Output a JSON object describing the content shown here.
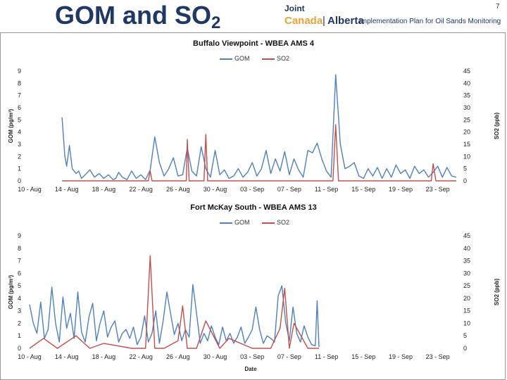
{
  "slide": {
    "title_main": "GOM and SO",
    "title_sub": "2",
    "page_number": "7"
  },
  "logo": {
    "line1": "Joint",
    "canada": "Canada",
    "sep": "|",
    "alberta": "Alberta",
    "plan": "Implementation Plan for Oil Sands Monitoring"
  },
  "colors": {
    "gom": "#4f81bd",
    "so2": "#c0504d"
  },
  "chart_data": [
    {
      "type": "line",
      "title": "Buffalo Viewpoint - WBEA AMS 4",
      "ylabel": "GOM (pg/m³)",
      "y2label": "SO2 (ppb)",
      "xlabel": "",
      "ylim": [
        0,
        9
      ],
      "y2lim": [
        0,
        45
      ],
      "legend": "top-center",
      "x_ticks": [
        "10 - Aug",
        "14 - Aug",
        "18 - Aug",
        "22 - Aug",
        "26 - Aug",
        "30 - Aug",
        "03 - Sep",
        "07 - Sep",
        "11 - Sep",
        "15 - Sep",
        "19 - Sep",
        "23 - Sep"
      ],
      "y_ticks": [
        0,
        1,
        2,
        3,
        4,
        5,
        6,
        7,
        8,
        9
      ],
      "y2_ticks": [
        0,
        5,
        10,
        15,
        20,
        25,
        30,
        35,
        40,
        45
      ],
      "x_range": [
        0,
        46
      ],
      "series": [
        {
          "name": "GOM",
          "axis": "left",
          "color": "#4f81bd",
          "x": [
            3.5,
            3.8,
            4,
            4.3,
            4.6,
            5,
            5.3,
            5.6,
            6,
            6.5,
            7,
            7.5,
            8,
            8.5,
            9,
            9.3,
            9.6,
            10,
            10.5,
            11,
            11.5,
            12,
            12.5,
            13,
            13.5,
            14,
            14.5,
            15,
            15.5,
            16,
            16.5,
            17,
            17.5,
            18,
            18.5,
            19,
            19.5,
            20,
            20.5,
            21,
            21.5,
            22,
            22.5,
            23,
            23.5,
            24,
            24.5,
            25,
            25.5,
            26,
            26.5,
            27,
            27.5,
            28,
            28.5,
            29,
            29.5,
            30,
            30.5,
            31,
            31.5,
            32,
            32.5,
            33,
            33.5,
            34,
            34.5,
            35,
            35.5,
            36,
            36.5,
            37,
            37.5,
            38,
            38.5,
            39,
            39.5,
            40,
            40.5,
            41,
            41.5,
            42,
            42.5,
            43,
            43.5,
            44,
            44.5,
            45,
            45.5,
            46
          ],
          "y": [
            5.2,
            2.0,
            1.2,
            2.9,
            1.0,
            0.6,
            0.8,
            0.2,
            0.5,
            0.9,
            0.3,
            0.6,
            0.2,
            0.5,
            0.1,
            0.2,
            0.7,
            0.3,
            0.1,
            0.8,
            0.2,
            0.5,
            0.1,
            0.9,
            3.6,
            1.5,
            0.4,
            1.0,
            1.9,
            0.4,
            0.5,
            2.7,
            0.8,
            0.4,
            2.8,
            1.0,
            0.3,
            2.5,
            0.5,
            0.9,
            0.2,
            0.4,
            1.0,
            0.3,
            0.7,
            1.5,
            0.4,
            1.0,
            2.5,
            0.6,
            1.8,
            0.8,
            2.4,
            0.5,
            1.8,
            0.9,
            0.3,
            2.5,
            2.3,
            3.1,
            1.8,
            0.8,
            0.3,
            8.7,
            3.0,
            1.0,
            1.2,
            1.5,
            0.4,
            0.2,
            1.0,
            0.4,
            1.1,
            0.2,
            1.0,
            0.3,
            1.3,
            0.6,
            0.9,
            0.2,
            1.2,
            0.6,
            0.9,
            0.3,
            0.7,
            1.2,
            0.3,
            1.1,
            0.4,
            0.3
          ]
        },
        {
          "name": "SO2",
          "axis": "right",
          "color": "#c0504d",
          "x": [
            3.5,
            10,
            12.8,
            13,
            13.2,
            16,
            16.9,
            17,
            17.2,
            18.8,
            19,
            19.2,
            22,
            25,
            30,
            32.7,
            33,
            33.3,
            38,
            43.3,
            43.5,
            43.8,
            46
          ],
          "y": [
            0,
            0,
            0,
            4,
            0,
            0,
            0,
            17,
            0,
            0,
            19,
            0,
            0,
            0,
            0,
            0,
            23,
            0,
            0,
            0,
            7,
            0,
            0
          ]
        }
      ]
    },
    {
      "type": "line",
      "title": "Fort McKay South - WBEA AMS 13",
      "ylabel": "GOM (pg/m³)",
      "y2label": "SO2 (ppb)",
      "xlabel": "Date",
      "ylim": [
        0,
        9
      ],
      "y2lim": [
        0,
        45
      ],
      "legend": "top-center",
      "x_ticks": [
        "10 - Aug",
        "14 - Aug",
        "18 - Aug",
        "22 - Aug",
        "26 - Aug",
        "30 - Aug",
        "03 - Sep",
        "07 - Sep",
        "11 - Sep",
        "15 - Sep",
        "19 - Sep",
        "23 - Sep"
      ],
      "y_ticks": [
        0,
        1,
        2,
        3,
        4,
        5,
        6,
        7,
        8,
        9
      ],
      "y2_ticks": [
        0,
        5,
        10,
        15,
        20,
        25,
        30,
        35,
        40,
        45
      ],
      "x_range": [
        0,
        46
      ],
      "series": [
        {
          "name": "GOM",
          "axis": "left",
          "color": "#4f81bd",
          "x": [
            0,
            0.4,
            0.8,
            1.2,
            1.6,
            2,
            2.4,
            2.8,
            3.2,
            3.6,
            4,
            4.4,
            4.8,
            5.2,
            5.6,
            6,
            6.4,
            6.8,
            7.2,
            7.6,
            8,
            8.4,
            8.8,
            9.2,
            9.6,
            10,
            10.4,
            10.8,
            11.2,
            11.6,
            12,
            12.4,
            12.8,
            13.2,
            13.6,
            14,
            14.4,
            14.8,
            15.2,
            15.6,
            16,
            16.4,
            16.8,
            17.2,
            17.6,
            18,
            18.4,
            18.8,
            19.2,
            19.6,
            20,
            20.4,
            20.8,
            21.2,
            21.6,
            22,
            22.4,
            22.8,
            23.2,
            23.6,
            24,
            24.4,
            24.8,
            25.2,
            25.6,
            26,
            26.4,
            26.8,
            27.2,
            27.6,
            28,
            28.4,
            28.8,
            29.2,
            29.6,
            30,
            30.4,
            30.8,
            31,
            31.2
          ],
          "y": [
            3.5,
            2.0,
            1.2,
            3.7,
            0.8,
            1.5,
            4.9,
            2.0,
            0.5,
            4.1,
            1.6,
            2.8,
            0.8,
            4.5,
            1.3,
            0.5,
            2.5,
            3.6,
            0.6,
            2.0,
            3.0,
            0.9,
            1.7,
            2.2,
            0.5,
            1.2,
            1.5,
            0.8,
            1.7,
            0.3,
            0.9,
            2.6,
            0.5,
            1.2,
            3.0,
            0.4,
            2.2,
            4.5,
            2.8,
            1.1,
            2.0,
            0.6,
            1.5,
            0.9,
            5.1,
            2.8,
            0.4,
            1.2,
            0.6,
            1.8,
            0.9,
            0.3,
            1.7,
            0.6,
            1.2,
            0.4,
            0.9,
            1.7,
            0.4,
            0.9,
            1.5,
            3.3,
            1.5,
            0.4,
            1.0,
            0.8,
            0.5,
            4.2,
            5.0,
            2.1,
            0.6,
            3.3,
            1.2,
            0.5,
            1.8,
            0.9,
            0.3,
            0.2,
            3.8,
            0.1
          ]
        },
        {
          "name": "SO2",
          "axis": "right",
          "color": "#c0504d",
          "x": [
            0,
            1.5,
            3,
            5,
            6.5,
            8,
            11,
            12.5,
            13,
            13.5,
            14.5,
            16,
            16.5,
            17,
            18,
            19,
            20.5,
            21.5,
            24,
            26,
            27,
            27.5,
            28,
            28.5,
            30,
            31.2
          ],
          "y": [
            0,
            4,
            0,
            5,
            0,
            2,
            0,
            0,
            37,
            0,
            0,
            3,
            17,
            0,
            0,
            11,
            0,
            4,
            0,
            0,
            8,
            24,
            0,
            10,
            0,
            0
          ]
        }
      ]
    }
  ]
}
